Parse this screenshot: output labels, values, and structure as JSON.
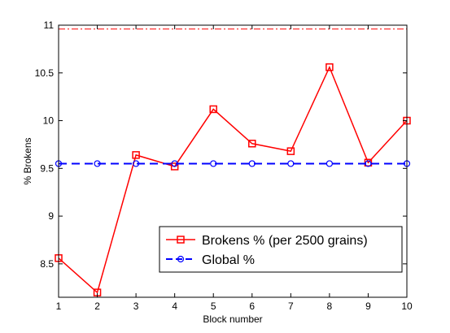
{
  "chart_data": {
    "type": "line",
    "xlabel": "Block number",
    "ylabel": "% Brokens",
    "xlim": [
      1,
      10
    ],
    "ylim": [
      8.15,
      11
    ],
    "x_ticks": [
      1,
      2,
      3,
      4,
      5,
      6,
      7,
      8,
      9,
      10
    ],
    "y_ticks": [
      8.5,
      9,
      9.5,
      10,
      10.5,
      11
    ],
    "x_tick_labels": [
      "1",
      "2",
      "3",
      "4",
      "5",
      "6",
      "7",
      "8",
      "9",
      "10"
    ],
    "y_tick_labels": [
      "8.5",
      "9",
      "9.5",
      "10",
      "10.5",
      "11"
    ],
    "grid": false,
    "legend_position": "bottom-right",
    "series": [
      {
        "name": "Brokens % (per 2500 grains)",
        "color": "#ff0000",
        "marker": "square",
        "line_style": "solid",
        "x": [
          1,
          2,
          3,
          4,
          5,
          6,
          7,
          8,
          9,
          10
        ],
        "values": [
          8.56,
          8.2,
          9.64,
          9.52,
          10.12,
          9.76,
          9.68,
          10.56,
          9.56,
          10.0
        ]
      },
      {
        "name": "Global %",
        "color": "#0000ff",
        "marker": "circle",
        "line_style": "dashed",
        "x": [
          1,
          2,
          3,
          4,
          5,
          6,
          7,
          8,
          9,
          10
        ],
        "values": [
          9.55,
          9.55,
          9.55,
          9.55,
          9.55,
          9.55,
          9.55,
          9.55,
          9.55,
          9.55
        ]
      }
    ],
    "reference_lines": [
      {
        "y": 10.96,
        "color": "#ff0000",
        "line_style": "dash-dot"
      },
      {
        "y": 8.15,
        "color": "#ff0000",
        "line_style": "dash-dot"
      }
    ]
  }
}
